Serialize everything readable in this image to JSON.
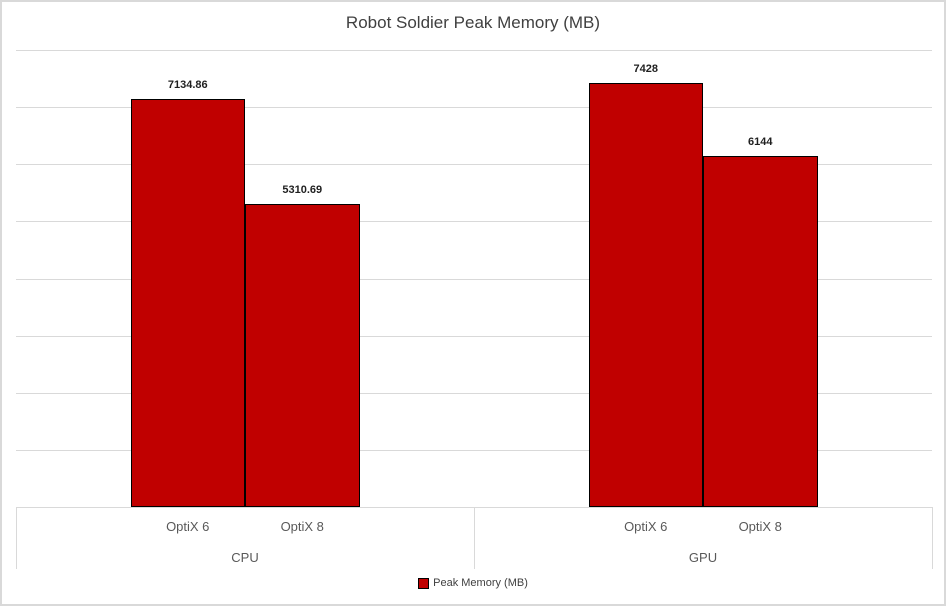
{
  "chart_data": {
    "type": "bar",
    "title": "Robot Soldier Peak Memory (MB)",
    "xlabel": "",
    "ylabel": "",
    "ylim": [
      0,
      8000
    ],
    "gridline_step": 1000,
    "grid": true,
    "y_tick_labels_visible": false,
    "legend_position": "bottom",
    "groups": [
      {
        "label": "CPU",
        "bars": [
          {
            "label": "OptiX 6",
            "value": 7134.86,
            "value_label": "7134.86"
          },
          {
            "label": "OptiX 8",
            "value": 5310.69,
            "value_label": "5310.69"
          }
        ]
      },
      {
        "label": "GPU",
        "bars": [
          {
            "label": "OptiX 6",
            "value": 7428,
            "value_label": "7428"
          },
          {
            "label": "OptiX 8",
            "value": 6144,
            "value_label": "6144"
          }
        ]
      }
    ],
    "series": [
      {
        "name": "Peak Memory (MB)",
        "values": [
          7134.86,
          5310.69,
          7428,
          6144
        ]
      }
    ],
    "legend": {
      "label": "Peak Memory (MB)",
      "swatch_color": "#C00000"
    },
    "colors": {
      "bar_fill": "#C00000",
      "bar_border": "#000000",
      "gridline": "#D9D9D9",
      "frame_border": "#D9D9D9",
      "title_text": "#404040",
      "axis_text": "#595959",
      "data_label_text": "#1f1f1f",
      "background": "#FFFFFF"
    }
  }
}
